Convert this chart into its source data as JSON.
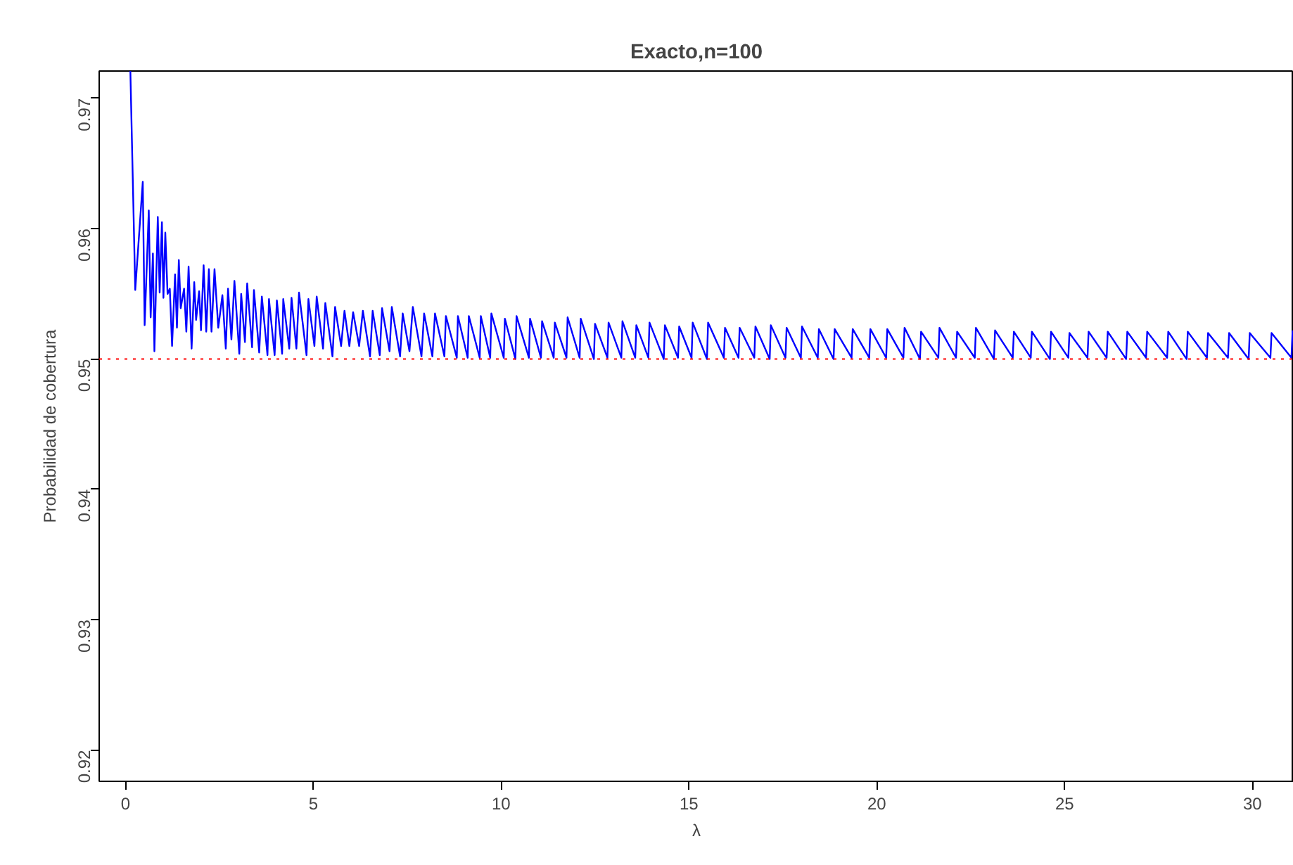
{
  "chart_data": {
    "type": "line",
    "title": "Exacto,n=100",
    "xlabel": "λ",
    "ylabel": "Probabilidad de cobertura",
    "xlim": [
      -0.7,
      31.1
    ],
    "ylim": [
      0.9176,
      0.9721
    ],
    "xticks": [
      0,
      5,
      10,
      15,
      20,
      25,
      30
    ],
    "yticks": [
      0.92,
      0.93,
      0.94,
      0.95,
      0.96,
      0.97
    ],
    "grid": false,
    "marker": "none",
    "line_style": "solid",
    "ref_lines": [
      {
        "axis": "y",
        "value": 0.95,
        "color": "#ff0000",
        "line_style": "dotted"
      }
    ],
    "series": [
      {
        "color": "#0000ff",
        "x": [
          0.13,
          0.26,
          0.46,
          0.51,
          0.62,
          0.67,
          0.73,
          0.77,
          0.86,
          0.91,
          0.97,
          1.01,
          1.06,
          1.12,
          1.18,
          1.24,
          1.32,
          1.37,
          1.42,
          1.47,
          1.56,
          1.62,
          1.68,
          1.76,
          1.83,
          1.88,
          1.96,
          2.01,
          2.08,
          2.15,
          2.22,
          2.29,
          2.37,
          2.47,
          2.58,
          2.67,
          2.73,
          2.82,
          2.9,
          3.03,
          3.08,
          3.18,
          3.24,
          3.37,
          3.42,
          3.56,
          3.63,
          3.78,
          3.82,
          3.97,
          4.03,
          4.17,
          4.2,
          4.36,
          4.42,
          4.55,
          4.62,
          4.82,
          4.87,
          5.03,
          5.09,
          5.26,
          5.32,
          5.51,
          5.58,
          5.74,
          5.83,
          5.96,
          6.06,
          6.22,
          6.32,
          6.51,
          6.58,
          6.77,
          6.83,
          7.03,
          7.09,
          7.31,
          7.38,
          7.56,
          7.65,
          7.88,
          7.95,
          8.17,
          8.24,
          8.49,
          8.53,
          8.82,
          8.85,
          9.11,
          9.14,
          9.43,
          9.46,
          9.71,
          9.74,
          10.07,
          10.1,
          10.38,
          10.41,
          10.74,
          10.77,
          11.06,
          11.09,
          11.4,
          11.43,
          11.74,
          11.77,
          12.09,
          12.12,
          12.47,
          12.5,
          12.83,
          12.86,
          13.2,
          13.23,
          13.57,
          13.6,
          13.92,
          13.95,
          14.33,
          14.36,
          14.71,
          14.74,
          15.07,
          15.1,
          15.48,
          15.51,
          15.93,
          15.96,
          16.32,
          16.35,
          16.74,
          16.77,
          17.15,
          17.18,
          17.57,
          17.6,
          17.98,
          18.01,
          18.43,
          18.46,
          18.85,
          18.88,
          19.33,
          19.36,
          19.8,
          19.83,
          20.25,
          20.28,
          20.71,
          20.74,
          21.15,
          21.18,
          21.64,
          21.67,
          22.11,
          22.14,
          22.61,
          22.64,
          23.12,
          23.15,
          23.62,
          23.65,
          24.1,
          24.13,
          24.61,
          24.64,
          25.1,
          25.13,
          25.61,
          25.64,
          26.12,
          26.15,
          26.64,
          26.67,
          27.17,
          27.2,
          27.73,
          27.76,
          28.25,
          28.28,
          28.79,
          28.82,
          29.35,
          29.38,
          29.9,
          29.93,
          30.48,
          30.51,
          31.04,
          31.07
        ],
        "values": [
          0.9721,
          0.9553,
          0.9636,
          0.9526,
          0.9614,
          0.9532,
          0.9581,
          0.9506,
          0.9609,
          0.9551,
          0.9605,
          0.9547,
          0.9597,
          0.955,
          0.9554,
          0.951,
          0.9565,
          0.9524,
          0.9576,
          0.9539,
          0.9554,
          0.9521,
          0.9571,
          0.9508,
          0.9559,
          0.953,
          0.9552,
          0.9522,
          0.9572,
          0.9521,
          0.9569,
          0.9521,
          0.9569,
          0.9524,
          0.9549,
          0.9508,
          0.9554,
          0.9515,
          0.956,
          0.9504,
          0.955,
          0.9513,
          0.9558,
          0.9509,
          0.9553,
          0.9505,
          0.9548,
          0.9503,
          0.9546,
          0.9503,
          0.9545,
          0.9504,
          0.9546,
          0.9508,
          0.9547,
          0.9508,
          0.9551,
          0.9503,
          0.9546,
          0.951,
          0.9548,
          0.9508,
          0.9543,
          0.9502,
          0.954,
          0.951,
          0.9537,
          0.951,
          0.9536,
          0.951,
          0.9537,
          0.9502,
          0.9537,
          0.9503,
          0.9539,
          0.9506,
          0.954,
          0.9502,
          0.9535,
          0.9506,
          0.954,
          0.9502,
          0.9535,
          0.9502,
          0.9535,
          0.9502,
          0.9533,
          0.9501,
          0.9533,
          0.9501,
          0.9533,
          0.9501,
          0.9533,
          0.9501,
          0.9535,
          0.9501,
          0.9531,
          0.95,
          0.9533,
          0.9501,
          0.9531,
          0.9501,
          0.9529,
          0.9501,
          0.9528,
          0.9501,
          0.9532,
          0.9501,
          0.9531,
          0.95,
          0.9527,
          0.9501,
          0.9528,
          0.9501,
          0.9529,
          0.9501,
          0.9526,
          0.9501,
          0.9528,
          0.95,
          0.9526,
          0.9501,
          0.9525,
          0.9501,
          0.9528,
          0.95,
          0.9528,
          0.9501,
          0.9524,
          0.9501,
          0.9524,
          0.9501,
          0.9525,
          0.95,
          0.9526,
          0.9501,
          0.9524,
          0.9501,
          0.9525,
          0.9501,
          0.9523,
          0.95,
          0.9523,
          0.9501,
          0.9523,
          0.9501,
          0.9523,
          0.9501,
          0.9523,
          0.9501,
          0.9524,
          0.95,
          0.9521,
          0.9501,
          0.9524,
          0.9501,
          0.9521,
          0.9501,
          0.9524,
          0.95,
          0.9522,
          0.9501,
          0.9521,
          0.9501,
          0.9521,
          0.95,
          0.9521,
          0.9501,
          0.952,
          0.9501,
          0.9521,
          0.9501,
          0.9521,
          0.95,
          0.9521,
          0.9501,
          0.9521,
          0.9501,
          0.9521,
          0.95,
          0.9521,
          0.9501,
          0.952,
          0.9501,
          0.952,
          0.95,
          0.952,
          0.9501,
          0.952,
          0.9501,
          0.9522
        ]
      }
    ]
  }
}
